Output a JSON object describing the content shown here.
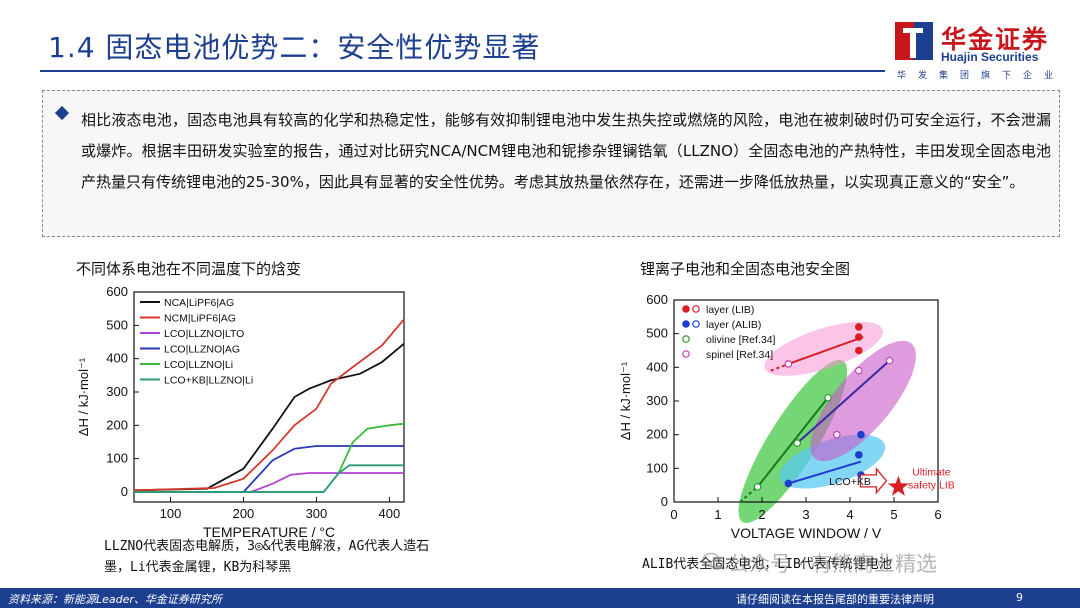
{
  "header": {
    "title": "1.4 固态电池优势二：安全性优势显著",
    "logo_cn": "华金证券",
    "logo_en": "Huajin Securities",
    "logo_sub": "华发集团旗下企业"
  },
  "summary": {
    "text": "相比液态电池，固态电池具有较高的化学和热稳定性，能够有效抑制锂电池中发生热失控或燃烧的风险，电池在被刺破时仍可安全运行，不会泄漏或爆炸。根据丰田研发实验室的报告，通过对比研究NCA/NCM锂电池和铌掺杂锂镧锆氧（LLZNO）全固态电池的产热特性，丰田发现全固态电池产热量只有传统锂电池的25-30%，因此具有显著的安全性优势。考虑其放热量依然存在，还需进一步降低放热量，以实现真正意义的“安全”。"
  },
  "left_chart": {
    "heading": "不同体系电池在不同温度下的焓变",
    "caption": "LLZNO代表固态电解质，3◎&代表电解液，AG代表人造石墨，Li代表金属锂，KB为科琴黑"
  },
  "right_chart": {
    "heading": "锂离子电池和全固态电池安全图",
    "caption": "ALIB代表全固态电池，LIB代表传统锂电池"
  },
  "chart_data": [
    {
      "type": "line",
      "xlabel": "TEMPERATURE / °C",
      "ylabel": "ΔH / kJ·mol⁻¹",
      "xlim": [
        50,
        420
      ],
      "ylim": [
        -30,
        600
      ],
      "xticks": [
        100,
        200,
        300,
        400
      ],
      "yticks": [
        0,
        100,
        200,
        300,
        400,
        500,
        600
      ],
      "legend_position": "top-left",
      "series": [
        {
          "name": "NCA|LiPF6|AG",
          "color": "#111111",
          "points": [
            [
              50,
              5
            ],
            [
              150,
              10
            ],
            [
              200,
              70
            ],
            [
              240,
              190
            ],
            [
              270,
              285
            ],
            [
              290,
              310
            ],
            [
              320,
              335
            ],
            [
              360,
              355
            ],
            [
              390,
              390
            ],
            [
              420,
              445
            ]
          ]
        },
        {
          "name": "NCM|LiPF6|AG",
          "color": "#d33a2c",
          "points": [
            [
              50,
              5
            ],
            [
              160,
              12
            ],
            [
              200,
              40
            ],
            [
              240,
              125
            ],
            [
              270,
              200
            ],
            [
              300,
              250
            ],
            [
              320,
              325
            ],
            [
              350,
              375
            ],
            [
              390,
              440
            ],
            [
              420,
              518
            ]
          ]
        },
        {
          "name": "LCO|LLZNO|LTO",
          "color": "#b040d0",
          "points": [
            [
              50,
              0
            ],
            [
              210,
              0
            ],
            [
              240,
              25
            ],
            [
              265,
              52
            ],
            [
              290,
              57
            ],
            [
              420,
              57
            ]
          ]
        },
        {
          "name": "LCO|LLZNO|AG",
          "color": "#2a38b8",
          "points": [
            [
              50,
              0
            ],
            [
              200,
              0
            ],
            [
              240,
              95
            ],
            [
              270,
              130
            ],
            [
              300,
              138
            ],
            [
              420,
              138
            ]
          ]
        },
        {
          "name": "LCO|LLZNO|Li",
          "color": "#3ab83a",
          "points": [
            [
              50,
              0
            ],
            [
              310,
              0
            ],
            [
              330,
              55
            ],
            [
              350,
              150
            ],
            [
              370,
              190
            ],
            [
              400,
              200
            ],
            [
              420,
              205
            ]
          ]
        },
        {
          "name": "LCO+KB|LLZNO|Li",
          "color": "#2a9a7a",
          "points": [
            [
              50,
              0
            ],
            [
              310,
              0
            ],
            [
              330,
              55
            ],
            [
              345,
              80
            ],
            [
              420,
              80
            ]
          ]
        }
      ]
    },
    {
      "type": "scatter",
      "xlabel": "VOLTAGE WINDOW / V",
      "ylabel": "ΔH / kJ·mol⁻¹",
      "xlim": [
        0,
        6
      ],
      "ylim": [
        0,
        600
      ],
      "xticks": [
        0,
        1,
        2,
        3,
        4,
        5,
        6
      ],
      "yticks": [
        0,
        100,
        200,
        300,
        400,
        500,
        600
      ],
      "legend_position": "top-left",
      "legend": [
        {
          "name": "layer (LIB)",
          "color": "#d81f26",
          "marker": "circle"
        },
        {
          "name": "layer (ALIB)",
          "color": "#1d3fd0",
          "marker": "star"
        },
        {
          "name": "olivine [Ref.34]",
          "color": "#2a9a2a",
          "marker": "open-circle"
        },
        {
          "name": "spinel [Ref.34]",
          "color": "#c040b0",
          "marker": "open-circle"
        }
      ],
      "series": [
        {
          "name": "layer (LIB)",
          "points": [
            [
              4.2,
              520
            ],
            [
              4.2,
              450
            ],
            [
              4.2,
              490
            ]
          ]
        },
        {
          "name": "layer (ALIB)",
          "points": [
            [
              4.25,
              200
            ],
            [
              4.2,
              140
            ],
            [
              4.25,
              80
            ],
            [
              2.6,
              55
            ]
          ]
        },
        {
          "name": "olivine [Ref.34]",
          "points": [
            [
              1.9,
              45
            ],
            [
              2.8,
              175
            ],
            [
              3.5,
              310
            ]
          ]
        },
        {
          "name": "spinel [Ref.34]",
          "points": [
            [
              2.6,
              410
            ],
            [
              4.9,
              420
            ],
            [
              4.2,
              390
            ],
            [
              3.7,
              200
            ]
          ]
        }
      ],
      "annotations": [
        {
          "text": "LCO+KB",
          "x": 4.0,
          "y": 50
        },
        {
          "text": "Ultimate",
          "x": 5.85,
          "y": 78,
          "color": "#d81f26"
        },
        {
          "text": "safety LIB",
          "x": 5.85,
          "y": 40,
          "color": "#d81f26"
        }
      ],
      "target_point": [
        5.1,
        45
      ]
    }
  ],
  "watermark": {
    "text": "公众号 · 有熊商业精选"
  },
  "footer": {
    "source": "资料来源：新能源Leader、华金证券研究所",
    "legal": "请仔细阅读在本报告尾部的重要法律声明",
    "page": "9"
  }
}
